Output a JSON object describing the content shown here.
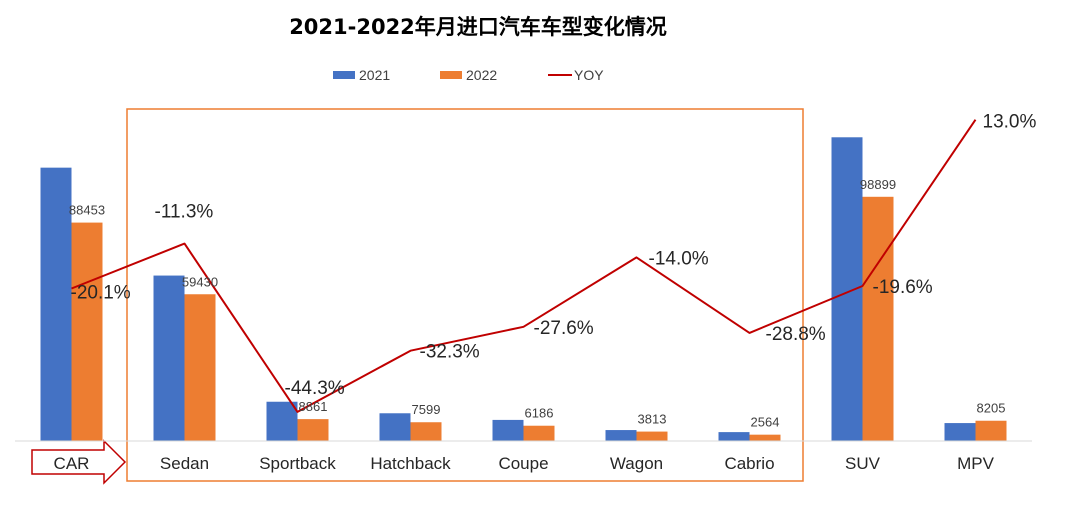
{
  "chart_data": {
    "type": "bar",
    "title": "2021-2022年月进口汽车车型变化情况",
    "categories": [
      "CAR",
      "Sedan",
      "Sportback",
      "Hatchback",
      "Coupe",
      "Wagon",
      "Cabrio",
      "SUV",
      "MPV"
    ],
    "series": [
      {
        "name": "2021",
        "type": "bar",
        "color": "#4472C4",
        "values": [
          110700,
          67000,
          15900,
          11230,
          8540,
          4430,
          3600,
          123000,
          7260
        ]
      },
      {
        "name": "2022",
        "type": "bar",
        "color": "#ED7D31",
        "values": [
          88453,
          59430,
          8861,
          7599,
          6186,
          3813,
          2564,
          98899,
          8205
        ],
        "labels": [
          "88453",
          "59430",
          "8861",
          "7599",
          "6186",
          "3813",
          "2564",
          "98899",
          "8205"
        ]
      },
      {
        "name": "YOY",
        "type": "line",
        "color": "#C00000",
        "values": [
          -20.1,
          -11.3,
          -44.3,
          -32.3,
          -27.6,
          -14.0,
          -28.8,
          -19.6,
          13.0
        ],
        "labels": [
          "-20.1%",
          "-11.3%",
          "-44.3%",
          "-32.3%",
          "-27.6%",
          "-14.0%",
          "-28.8%",
          "-19.6%",
          "13.0%"
        ]
      }
    ],
    "ylim": [
      0,
      130000
    ],
    "y2lim": [
      -50,
      20
    ],
    "legend_position": "top-center",
    "grid": false,
    "highlight_box": {
      "color": "#ED7D31",
      "covers": [
        "Sedan",
        "Sportback",
        "Hatchback",
        "Coupe",
        "Wagon",
        "Cabrio"
      ]
    },
    "arrow_callout": {
      "color": "#C00000",
      "target": "CAR"
    }
  }
}
